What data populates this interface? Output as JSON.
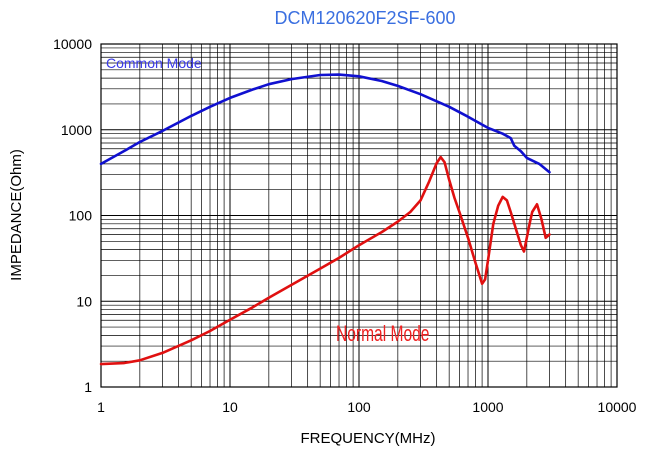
{
  "chart_data": {
    "type": "line",
    "title": "DCM120620F2SF-600",
    "xlabel": "FREQUENCY(MHz)",
    "ylabel": "IMPEDANCE(Ohm)",
    "x_scale": "log",
    "y_scale": "log",
    "xlim": [
      1,
      10000
    ],
    "ylim": [
      1,
      10000
    ],
    "grid": true,
    "x_ticks": [
      "1",
      "10",
      "100",
      "1000",
      "10000"
    ],
    "y_ticks": [
      "10000",
      "1000",
      "100",
      "10",
      "1"
    ],
    "series": [
      {
        "name": "Common Mode",
        "color": "#1010d0",
        "label_color": "#3a3ae8",
        "x": [
          1,
          1.5,
          2,
          3,
          5,
          7,
          10,
          15,
          20,
          30,
          50,
          70,
          100,
          150,
          200,
          300,
          500,
          700,
          1000,
          1300,
          1500,
          1600,
          1800,
          2000,
          2500,
          3000
        ],
        "y": [
          400,
          560,
          720,
          970,
          1450,
          1850,
          2350,
          2950,
          3400,
          3900,
          4350,
          4400,
          4200,
          3700,
          3250,
          2600,
          1850,
          1420,
          1050,
          900,
          800,
          650,
          560,
          470,
          400,
          320
        ]
      },
      {
        "name": "Normal Mode",
        "color": "#e01010",
        "label_color": "#ee2020",
        "x": [
          1,
          1.5,
          2,
          3,
          5,
          7,
          10,
          15,
          20,
          30,
          50,
          70,
          100,
          150,
          200,
          250,
          300,
          350,
          400,
          430,
          460,
          500,
          550,
          600,
          700,
          800,
          900,
          950,
          1000,
          1100,
          1200,
          1300,
          1400,
          1500,
          1600,
          1800,
          1900,
          2000,
          2100,
          2200,
          2400,
          2600,
          2800,
          3000
        ],
        "y": [
          1.85,
          1.9,
          2.05,
          2.5,
          3.5,
          4.5,
          6.1,
          8.5,
          11,
          15.5,
          24,
          32,
          45,
          64,
          85,
          110,
          150,
          250,
          410,
          480,
          420,
          260,
          160,
          110,
          55,
          28,
          16,
          18,
          30,
          80,
          130,
          165,
          150,
          110,
          80,
          45,
          38,
          55,
          80,
          110,
          135,
          90,
          55,
          60
        ]
      }
    ]
  }
}
